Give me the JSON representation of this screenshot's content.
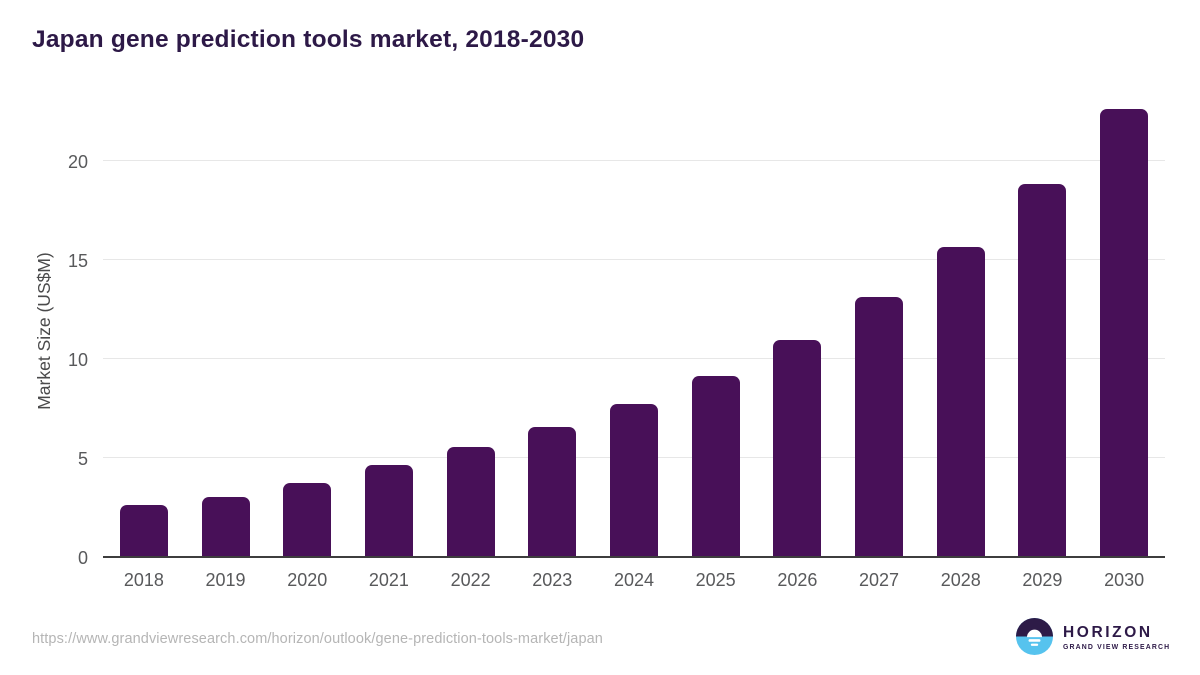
{
  "page": {
    "title": "Japan gene prediction tools market, 2018-2030",
    "source_url": "https://www.grandviewresearch.com/horizon/outlook/gene-prediction-tools-market/japan",
    "logo": {
      "brand": "HORIZON",
      "tagline": "GRAND VIEW RESEARCH"
    }
  },
  "chart_data": {
    "type": "bar",
    "title": "Japan gene prediction tools market, 2018-2030",
    "categories": [
      "2018",
      "2019",
      "2020",
      "2021",
      "2022",
      "2023",
      "2024",
      "2025",
      "2026",
      "2027",
      "2028",
      "2029",
      "2030"
    ],
    "values": [
      2.6,
      3.0,
      3.7,
      4.6,
      5.5,
      6.5,
      7.7,
      9.1,
      10.9,
      13.1,
      15.6,
      18.8,
      22.6
    ],
    "xlabel": "",
    "ylabel": "Market Size (US$M)",
    "ylim": [
      0,
      23.2
    ],
    "yticks": [
      0,
      5,
      10,
      15,
      20
    ],
    "legend": "none",
    "grid": "horizontal",
    "bar_color": "#481058"
  },
  "colors": {
    "title_text": "#2d1947",
    "bar": "#481058",
    "axis_text": "#58595b",
    "y_axis_title_text": "#4a4a4b",
    "gridline": "#e7e7e7",
    "axis_line": "#3d3d3d",
    "url_text": "#b5b5b5",
    "logo_purple": "#2d1b47",
    "logo_blue": "#56c3ee",
    "background": "#ffffff"
  }
}
